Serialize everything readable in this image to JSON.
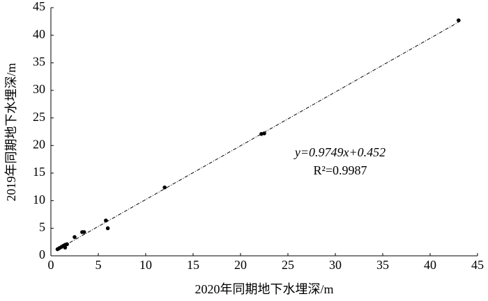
{
  "chart_data": {
    "type": "scatter",
    "x_label": "2020年同期地下水埋深/m",
    "y_label": "2019年同期地下水埋深/m",
    "x": [
      43,
      22.2,
      22.5,
      12.0,
      5.8,
      6.0,
      3.5,
      3.3,
      2.5,
      1.7,
      1.5,
      1.5,
      1.3,
      1.1,
      0.9,
      0.7
    ],
    "series": [
      {
        "color": "#000000",
        "values": [
          42.7,
          22.1,
          22.2,
          12.4,
          6.4,
          5.0,
          4.3,
          4.3,
          3.4,
          2.1,
          2.0,
          1.5,
          1.8,
          1.6,
          1.4,
          1.2
        ]
      }
    ],
    "trendline": {
      "slope": 0.9749,
      "intercept": 0.452,
      "equation": "y=0.9749x+0.452",
      "r2": "R²=0.9987"
    },
    "xlim": [
      0,
      45
    ],
    "ylim": [
      0,
      45
    ],
    "xticks": [
      0,
      5,
      10,
      15,
      20,
      25,
      30,
      35,
      40,
      45
    ],
    "yticks": [
      0,
      5,
      10,
      15,
      20,
      25,
      30,
      35,
      40,
      45
    ],
    "grid": false
  }
}
